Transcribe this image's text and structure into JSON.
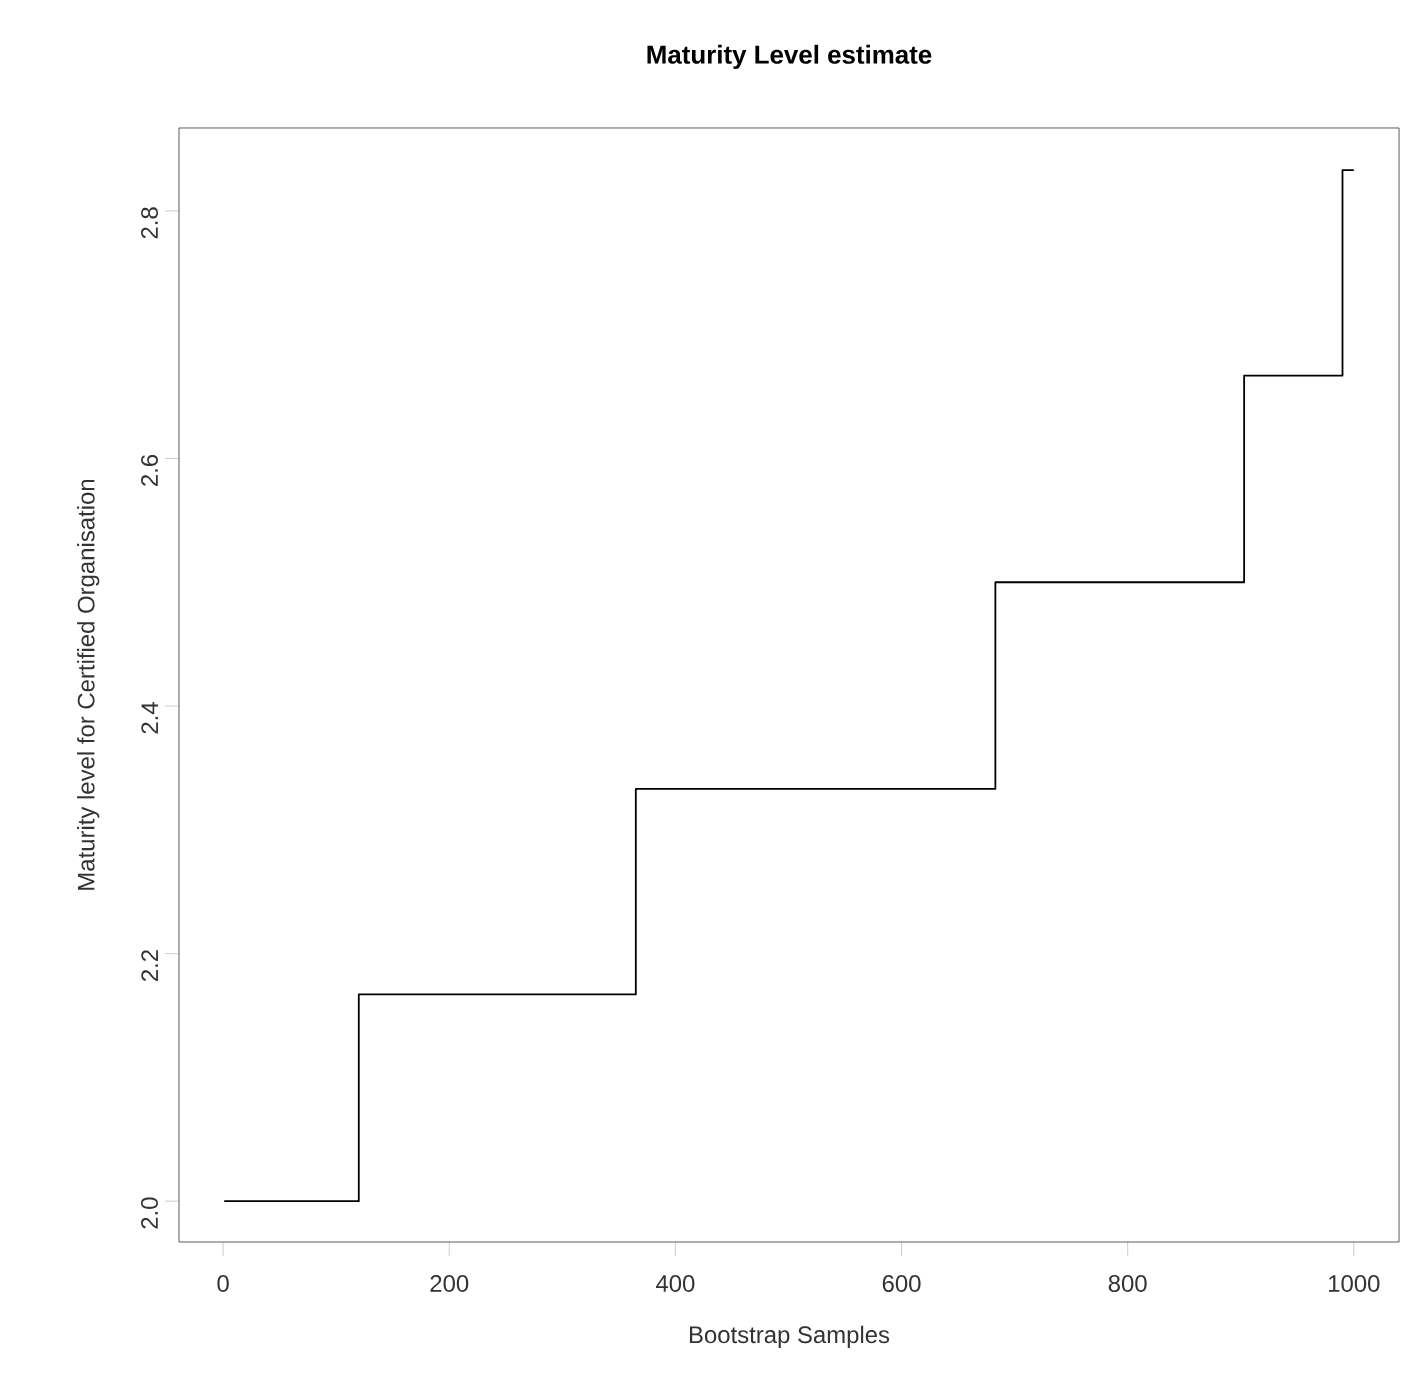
{
  "chart_data": {
    "type": "step",
    "title": "Maturity Level estimate",
    "xlabel": "Bootstrap Samples",
    "ylabel": "Maturity level for Certified Organisation",
    "x": [
      1,
      120,
      365,
      683,
      903,
      990,
      1000
    ],
    "values": [
      2.0,
      2.167,
      2.333,
      2.5,
      2.667,
      2.833,
      2.833
    ],
    "color": "#000000",
    "xlim": [
      -39,
      1040
    ],
    "ylim": [
      1.967,
      2.867
    ],
    "xticks": [
      0,
      200,
      400,
      600,
      800,
      1000
    ],
    "yticks": [
      {
        "value": 2,
        "label": "2.0"
      },
      2.2,
      2.4,
      2.6,
      2.8
    ],
    "grid": false,
    "marker": "none",
    "line_style": "solid"
  }
}
